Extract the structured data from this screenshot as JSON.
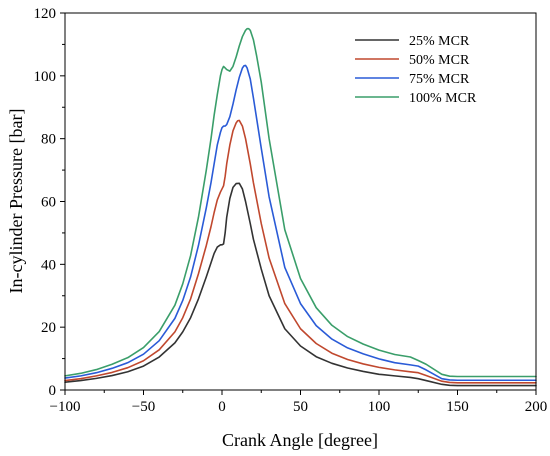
{
  "chart_data": {
    "type": "line",
    "title": "",
    "xlabel": "Crank Angle [degree]",
    "ylabel": "In-cylinder Pressure [bar]",
    "xlim": [
      -100,
      200
    ],
    "ylim": [
      0,
      120
    ],
    "xticks": [
      -100,
      -50,
      0,
      50,
      100,
      150,
      200
    ],
    "yticks": [
      0,
      20,
      40,
      60,
      80,
      100,
      120
    ],
    "xtick_labels": [
      "−100",
      "−50",
      "0",
      "50",
      "100",
      "150",
      "200"
    ],
    "ytick_labels": [
      "0",
      "20",
      "40",
      "60",
      "80",
      "100",
      "120"
    ],
    "grid": false,
    "legend_position": "top-right",
    "series": [
      {
        "name": "25% MCR",
        "color": "#333333",
        "x": [
          -100,
          -90,
          -80,
          -70,
          -60,
          -50,
          -40,
          -30,
          -25,
          -20,
          -15,
          -10,
          -7,
          -5,
          -3,
          -1,
          0,
          1,
          2,
          3,
          5,
          7,
          9,
          11,
          13,
          15,
          18,
          20,
          25,
          30,
          40,
          50,
          60,
          70,
          80,
          90,
          100,
          110,
          120,
          125,
          130,
          140,
          145,
          150,
          160,
          170,
          180,
          190,
          200
        ],
        "y": [
          2.5,
          3,
          3.7,
          4.6,
          5.8,
          7.6,
          10.5,
          15,
          18.5,
          23,
          29,
          36,
          40.5,
          43.5,
          45.5,
          46.2,
          46.2,
          46.5,
          50,
          55,
          61,
          64.5,
          65.7,
          65.8,
          64,
          60,
          53,
          48,
          38.5,
          30,
          19.5,
          14,
          10.6,
          8.5,
          7,
          5.9,
          5,
          4.5,
          4,
          3.6,
          3,
          1.8,
          1.5,
          1.4,
          1.4,
          1.4,
          1.4,
          1.4,
          1.4
        ]
      },
      {
        "name": "50% MCR",
        "color": "#c0482e",
        "x": [
          -100,
          -90,
          -80,
          -70,
          -60,
          -50,
          -40,
          -30,
          -25,
          -20,
          -15,
          -10,
          -7,
          -5,
          -3,
          -1,
          0,
          1,
          2,
          3,
          5,
          7,
          9,
          10,
          11,
          13,
          15,
          18,
          20,
          25,
          30,
          40,
          50,
          60,
          70,
          80,
          90,
          100,
          110,
          120,
          125,
          130,
          140,
          145,
          150,
          160,
          170,
          180,
          190,
          200
        ],
        "y": [
          3,
          3.6,
          4.5,
          5.6,
          7.1,
          9.3,
          12.8,
          18.5,
          23,
          29,
          37,
          46,
          52,
          56.5,
          60.5,
          63,
          64,
          65,
          68,
          72,
          78,
          82.5,
          85,
          85.7,
          85.8,
          84,
          80,
          72,
          66,
          53,
          42,
          27.5,
          19.5,
          14.8,
          11.7,
          9.7,
          8.3,
          7.2,
          6.4,
          5.8,
          5.5,
          4.6,
          2.8,
          2.4,
          2.3,
          2.3,
          2.3,
          2.3,
          2.3,
          2.3
        ]
      },
      {
        "name": "75% MCR",
        "color": "#2a5bd7",
        "x": [
          -100,
          -90,
          -80,
          -70,
          -60,
          -50,
          -40,
          -30,
          -25,
          -20,
          -15,
          -10,
          -7,
          -5,
          -3,
          -1,
          0,
          1,
          2,
          3,
          5,
          7,
          9,
          11,
          13,
          14,
          15,
          16,
          18,
          20,
          25,
          30,
          40,
          50,
          60,
          70,
          80,
          90,
          100,
          110,
          120,
          125,
          130,
          140,
          145,
          150,
          160,
          170,
          180,
          190,
          200
        ],
        "y": [
          3.8,
          4.5,
          5.5,
          6.9,
          8.7,
          11.4,
          15.7,
          22.8,
          28.5,
          36,
          46,
          58,
          66,
          72,
          78,
          82,
          83.5,
          84,
          84,
          84.5,
          87,
          91,
          95.5,
          99.5,
          102.5,
          103.2,
          103.3,
          102.5,
          99,
          93,
          77,
          61.5,
          39,
          27.5,
          20.5,
          16.2,
          13.4,
          11.5,
          9.9,
          8.7,
          8,
          7.6,
          6.4,
          3.6,
          3.2,
          3.1,
          3.1,
          3.1,
          3.1,
          3.1,
          3.1
        ]
      },
      {
        "name": "100% MCR",
        "color": "#3a9e6a",
        "x": [
          -100,
          -90,
          -80,
          -70,
          -60,
          -50,
          -40,
          -30,
          -25,
          -20,
          -15,
          -10,
          -7,
          -5,
          -3,
          -1,
          0,
          1,
          2,
          3,
          5,
          7,
          9,
          11,
          13,
          15,
          16,
          17,
          18,
          20,
          22,
          25,
          30,
          40,
          50,
          60,
          70,
          80,
          90,
          100,
          110,
          120,
          125,
          130,
          140,
          145,
          150,
          160,
          170,
          180,
          190,
          200
        ],
        "y": [
          4.5,
          5.3,
          6.5,
          8.2,
          10.3,
          13.5,
          18.6,
          27,
          33.8,
          42.8,
          55,
          70,
          80,
          87.5,
          94,
          100,
          102,
          103,
          102.5,
          102,
          101.5,
          103,
          106,
          109.5,
          112.5,
          114.5,
          115,
          115,
          114.5,
          111.5,
          106.5,
          98,
          80,
          51,
          35.5,
          26.2,
          20.6,
          17,
          14.6,
          12.7,
          11.3,
          10.5,
          9.4,
          8.2,
          5,
          4.4,
          4.3,
          4.3,
          4.3,
          4.3,
          4.3,
          4.3
        ]
      }
    ]
  }
}
